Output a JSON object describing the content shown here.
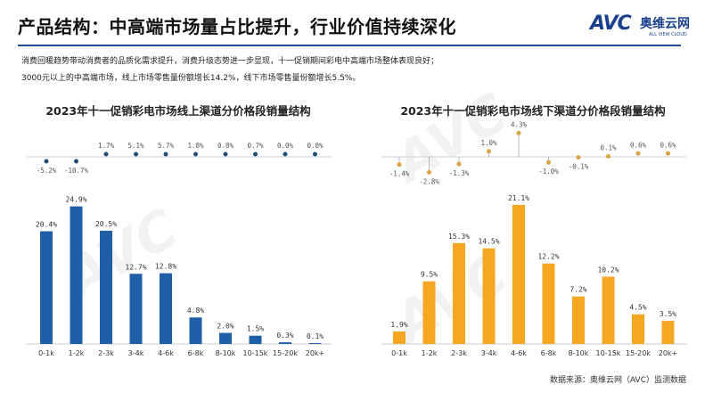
{
  "header": {
    "title": "产品结构：中高端市场量占比提升，行业价值持续深化",
    "logo_text": "AVC",
    "logo_cn": "奥维云网",
    "logo_en": "ALL VIEW CLOUD"
  },
  "intro": [
    "消费回暖趋势带动消费者的品质化需求提升，消费升级态势进一步显现，十一促销期间彩电中高端市场整体表现良好；",
    "3000元以上的中高端市场，线上市场零售量份额增长14.2%，线下市场零售量份额增长5.5%。"
  ],
  "watermark": "AVC 奥维云网",
  "source": "数据来源：奥维云网（AVC）监测数据",
  "colors": {
    "online": "#1f5fa8",
    "offline": "#f5a623",
    "online_dot": "#1f4e79",
    "offline_dot": "#d9a441",
    "rule": "#1f4e8c"
  },
  "chart_data": [
    {
      "type": "bar",
      "title": "2023年十一促销彩电市场线上渠道分价格段销量结构",
      "categories": [
        "0-1k",
        "1-2k",
        "2-3k",
        "3-4k",
        "4-6k",
        "6-8k",
        "8-10k",
        "10-15k",
        "15-20k",
        "20k+"
      ],
      "values": [
        20.4,
        24.9,
        20.5,
        12.7,
        12.8,
        4.8,
        2.0,
        1.5,
        0.3,
        0.1
      ],
      "value_labels": [
        "20.4%",
        "24.9%",
        "20.5%",
        "12.7%",
        "12.8%",
        "4.8%",
        "2.0%",
        "1.5%",
        "0.3%",
        "0.1%"
      ],
      "change": [
        -5.2,
        -10.7,
        1.7,
        5.1,
        5.7,
        1.8,
        0.8,
        0.7,
        0.0,
        0.0
      ],
      "change_labels": [
        "-5.2%",
        "-10.7%",
        "1.7%",
        "5.1%",
        "5.7%",
        "1.8%",
        "0.8%",
        "0.7%",
        "0.0%",
        "0.0%"
      ],
      "unit": "%"
    },
    {
      "type": "bar",
      "title": "2023年十一促销彩电市场线下渠道分价格段销量结构",
      "categories": [
        "0-1k",
        "1-2k",
        "2-3k",
        "3-4k",
        "4-6k",
        "6-8k",
        "8-10k",
        "10-15k",
        "15-20k",
        "20k+"
      ],
      "values": [
        1.9,
        9.5,
        15.3,
        14.5,
        21.1,
        12.2,
        7.2,
        10.2,
        4.5,
        3.5
      ],
      "value_labels": [
        "1.9%",
        "9.5%",
        "15.3%",
        "14.5%",
        "21.1%",
        "12.2%",
        "7.2%",
        "10.2%",
        "4.5%",
        "3.5%"
      ],
      "change": [
        -1.4,
        -2.8,
        -1.3,
        1.0,
        4.3,
        -1.0,
        -0.1,
        0.1,
        0.6,
        0.6
      ],
      "change_labels": [
        "-1.4%",
        "-2.8%",
        "-1.3%",
        "1.0%",
        "4.3%",
        "-1.0%",
        "-0.1%",
        "0.1%",
        "0.6%",
        "0.6%"
      ],
      "unit": "%"
    }
  ]
}
